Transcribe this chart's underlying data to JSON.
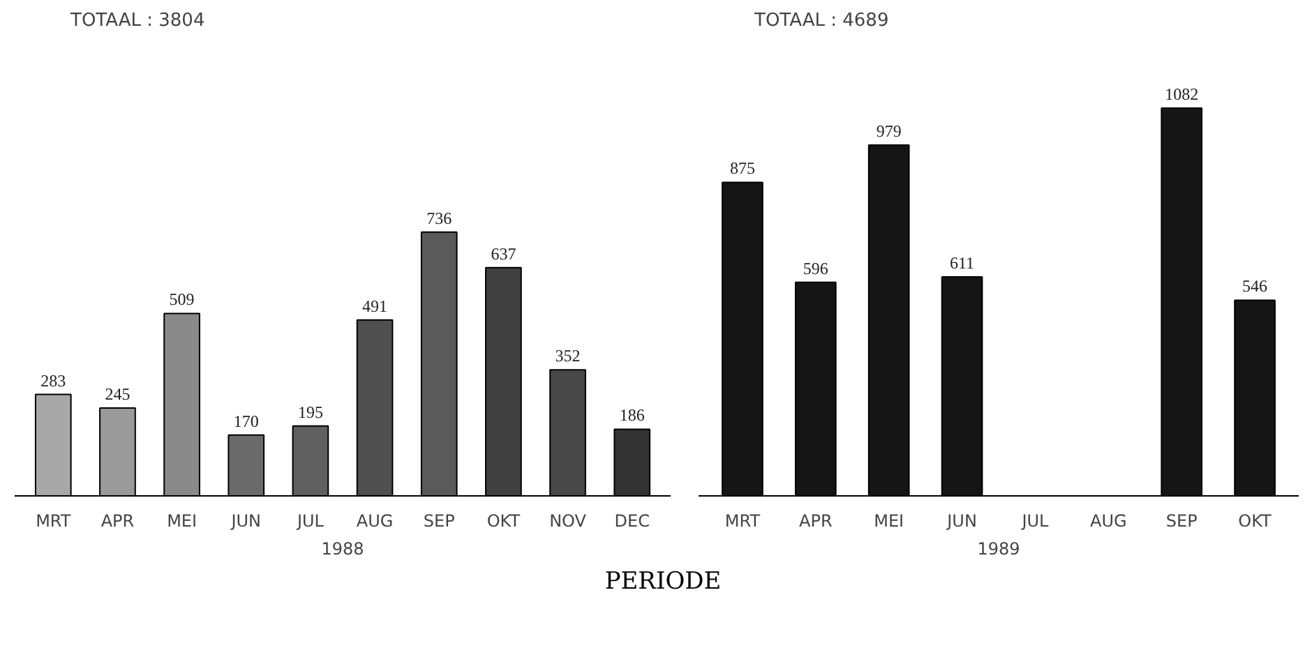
{
  "chart_data": [
    {
      "type": "bar",
      "title": "TOTAAL : 3804",
      "xlabel": "1988",
      "categories": [
        "MRT",
        "APR",
        "MEI",
        "JUN",
        "JUL",
        "AUG",
        "SEP",
        "OKT",
        "NOV",
        "DEC"
      ],
      "values": [
        283,
        245,
        509,
        170,
        195,
        491,
        736,
        637,
        352,
        186
      ],
      "colors": [
        "#a8a8a8",
        "#9a9a9a",
        "#8a8a8a",
        "#6a6a6a",
        "#606060",
        "#505050",
        "#5a5a5a",
        "#404040",
        "#484848",
        "#333333"
      ],
      "data_labels": true,
      "grid": false
    },
    {
      "type": "bar",
      "title": "TOTAAL : 4689",
      "xlabel": "1989",
      "categories": [
        "MRT",
        "APR",
        "MEI",
        "JUN",
        "JUL",
        "AUG",
        "SEP",
        "OKT"
      ],
      "values": [
        875,
        596,
        979,
        611,
        null,
        null,
        1082,
        546
      ],
      "color": "#151515",
      "data_labels": true,
      "grid": false,
      "annotations": [
        "PERIODE"
      ]
    }
  ]
}
